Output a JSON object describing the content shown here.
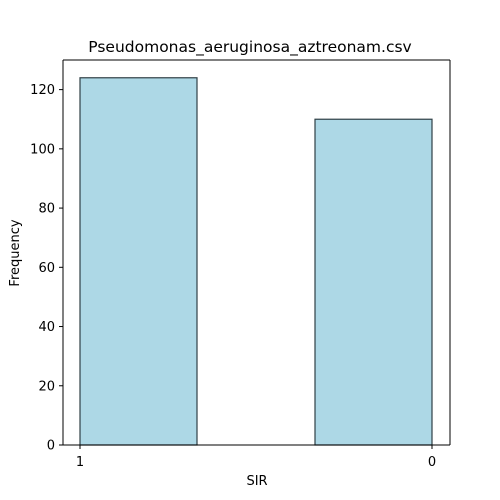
{
  "chart_data": {
    "type": "bar",
    "title": "Pseudomonas_aeruginosa_aztreonam.csv",
    "xlabel": "SIR",
    "ylabel": "Frequency",
    "categories": [
      "1",
      "0"
    ],
    "values": [
      124,
      110
    ],
    "ylim": [
      0,
      130
    ],
    "yticks": [
      0,
      20,
      40,
      60,
      80,
      100,
      120
    ],
    "grid": false,
    "colors": {
      "bar_fill": "#add8e6",
      "bar_edge": "#2f3f45",
      "axis": "#000000"
    }
  }
}
